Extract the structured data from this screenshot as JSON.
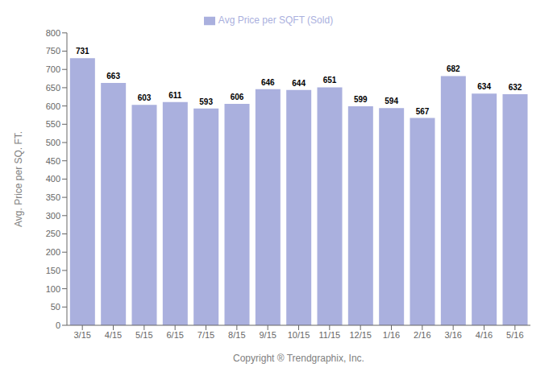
{
  "chart_data": {
    "type": "bar",
    "categories": [
      "3/15",
      "4/15",
      "5/15",
      "6/15",
      "7/15",
      "8/15",
      "9/15",
      "10/15",
      "11/15",
      "12/15",
      "1/16",
      "2/16",
      "3/16",
      "4/16",
      "5/16"
    ],
    "series": [
      {
        "name": "Avg Price per SQFT (Sold)",
        "color": "#aab0de",
        "values": [
          731,
          663,
          603,
          611,
          593,
          606,
          646,
          644,
          651,
          599,
          594,
          567,
          682,
          634,
          632
        ]
      }
    ],
    "xlabel": "Copyright ® Trendgraphix, Inc.",
    "ylabel": "Avg. Price per SQ. FT.",
    "ylim": [
      0,
      800
    ],
    "yticks": [
      0,
      50,
      100,
      150,
      200,
      250,
      300,
      350,
      400,
      450,
      500,
      550,
      600,
      650,
      700,
      750,
      800
    ],
    "grid": false,
    "legend": "top",
    "data_labels": true
  }
}
